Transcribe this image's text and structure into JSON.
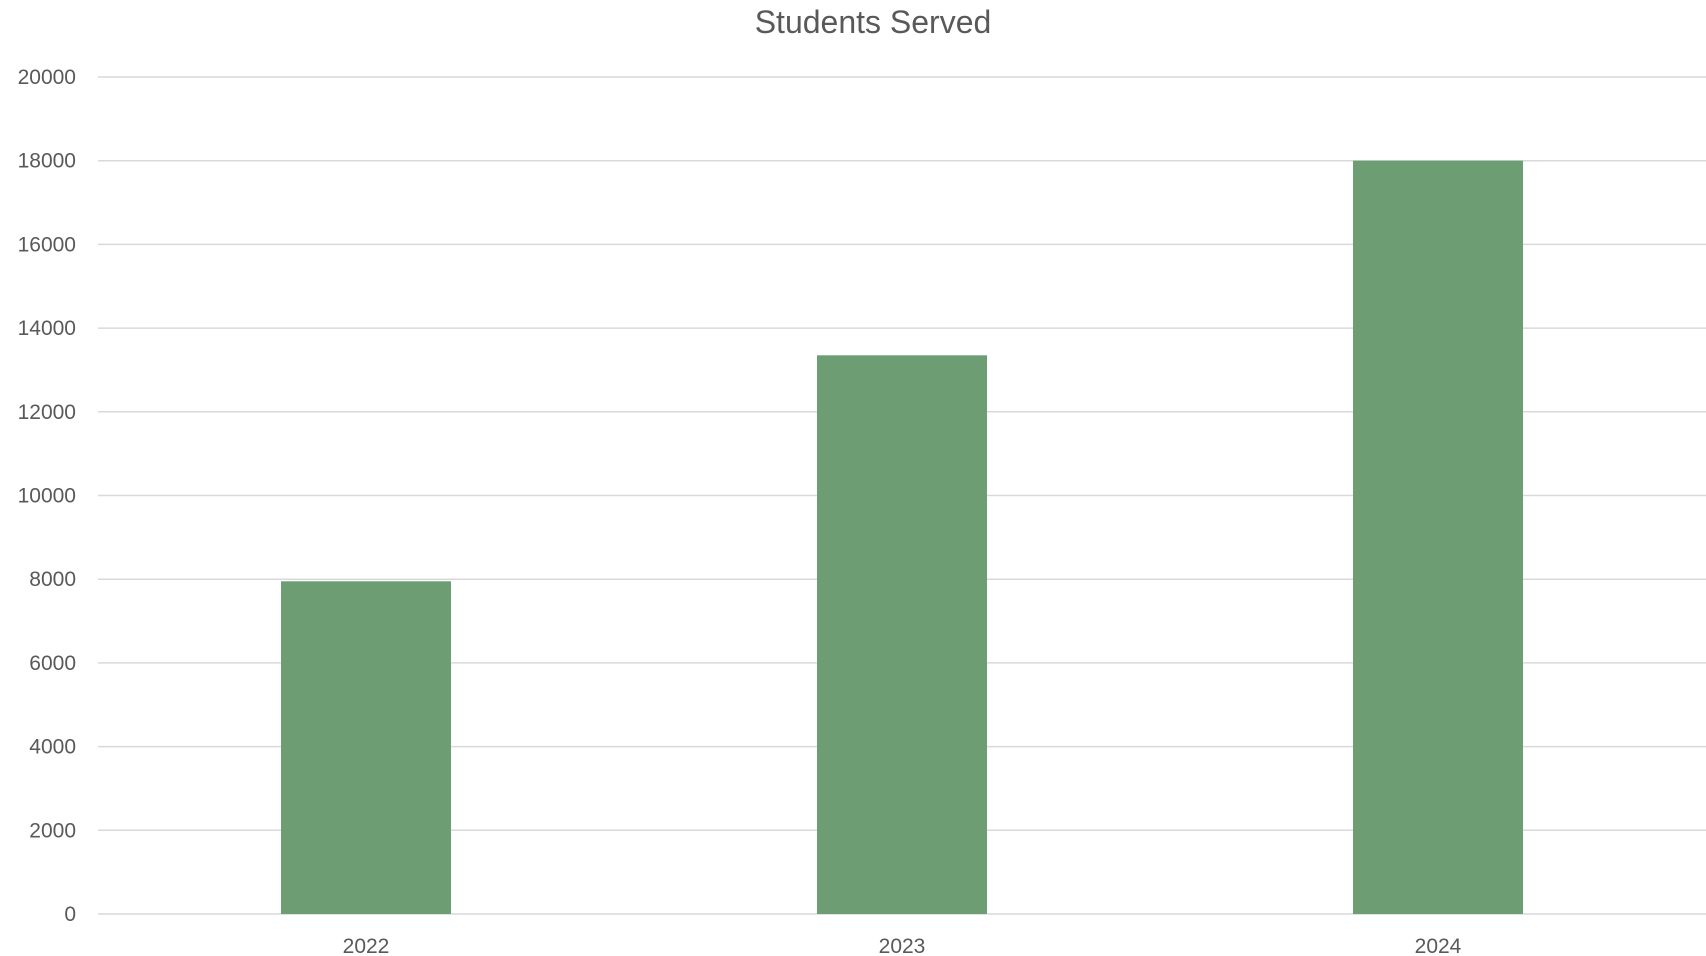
{
  "chart_data": {
    "type": "bar",
    "title": "Students Served",
    "xlabel": "",
    "ylabel": "",
    "categories": [
      "2022",
      "2023",
      "2024"
    ],
    "series": [
      {
        "values": [
          7950,
          13350,
          18000
        ]
      }
    ],
    "ylim": [
      0,
      20000
    ],
    "yticks": [
      0,
      2000,
      4000,
      6000,
      8000,
      10000,
      12000,
      14000,
      16000,
      18000,
      20000
    ],
    "grid": true,
    "legend": "none",
    "colors": {
      "bar": "#6d9e73",
      "grid": "#d9d9d9",
      "text": "#595959"
    }
  }
}
